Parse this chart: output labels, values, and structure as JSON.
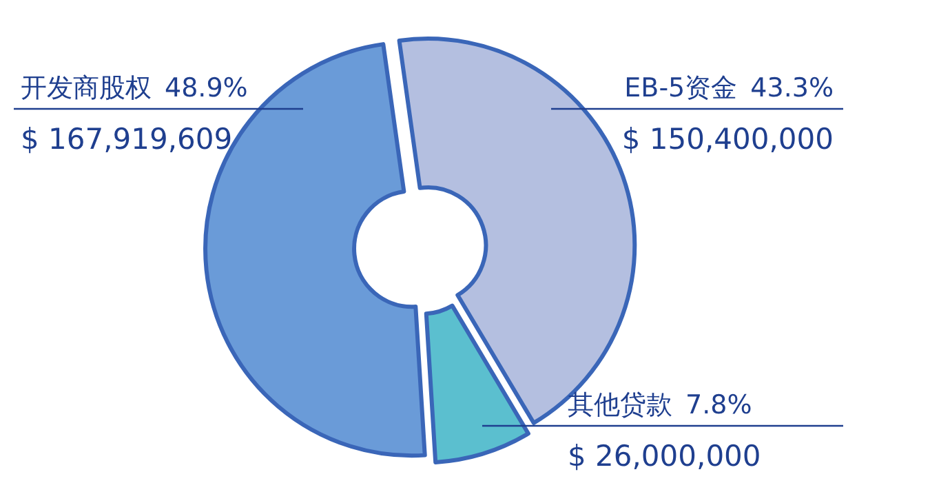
{
  "chart_data": {
    "type": "donut",
    "categories": [
      "开发商股权",
      "EB-5资金",
      "其他贷款"
    ],
    "values": [
      167919609,
      150400000,
      26000000
    ],
    "colors": [
      "#6a9bd8",
      "#b4bfe0",
      "#5bbfcf"
    ],
    "value_labels": [
      "$ 167,919,609",
      "$ 150,400,000",
      "$ 26,000,000"
    ],
    "annotations": [
      "48.9%",
      "43.3%",
      "7.8%"
    ]
  }
}
